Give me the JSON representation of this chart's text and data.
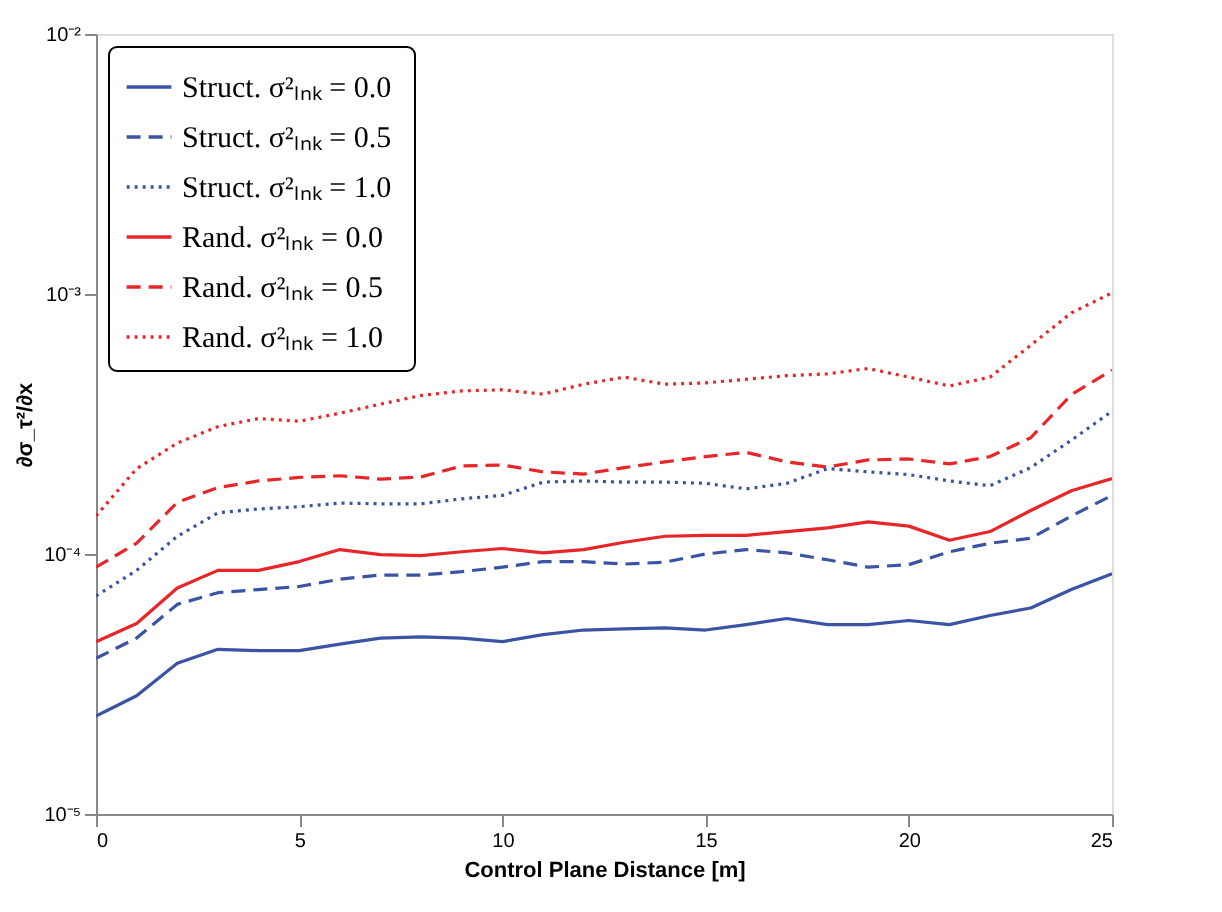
{
  "chart_data": {
    "type": "line",
    "xlabel": "Control Plane Distance [m]",
    "ylabel": "∂σ_τ²/∂x",
    "x": [
      0,
      1,
      2,
      3,
      4,
      5,
      6,
      7,
      8,
      9,
      10,
      11,
      12,
      13,
      14,
      15,
      16,
      17,
      18,
      19,
      20,
      21,
      22,
      23,
      24,
      25
    ],
    "xlim": [
      0,
      25
    ],
    "xticks": [
      0,
      5,
      10,
      15,
      20,
      25
    ],
    "ylim": [
      1e-05,
      0.01
    ],
    "yticks": [
      {
        "value": 1e-05,
        "label": "10⁻⁵"
      },
      {
        "value": 0.0001,
        "label": "10⁻⁴"
      },
      {
        "value": 0.001,
        "label": "10⁻³"
      },
      {
        "value": 0.01,
        "label": "10⁻²"
      }
    ],
    "log": "y",
    "grid": false,
    "legend": "top left",
    "marker": "none",
    "series": [
      {
        "name": "Struct. σ²ₗₙₖ = 0.0",
        "color": "#3b53a4",
        "line_style": "solid",
        "values": [
          2.38e-05,
          2.85e-05,
          3.8e-05,
          4.3e-05,
          4.25e-05,
          4.25e-05,
          4.5e-05,
          4.75e-05,
          4.8e-05,
          4.75e-05,
          4.6e-05,
          4.9e-05,
          5.1e-05,
          5.15e-05,
          5.2e-05,
          5.1e-05,
          5.35e-05,
          5.65e-05,
          5.35e-05,
          5.35e-05,
          5.55e-05,
          5.35e-05,
          5.8e-05,
          6.2e-05,
          7.3e-05,
          8.4e-05
        ]
      },
      {
        "name": "Struct. σ²ₗₙₖ = 0.5",
        "color": "#3b53a4",
        "line_style": "dashed",
        "values": [
          3.97e-05,
          4.75e-05,
          6.4e-05,
          7.1e-05,
          7.3e-05,
          7.5e-05,
          8e-05,
          8.3e-05,
          8.3e-05,
          8.55e-05,
          8.9e-05,
          9.35e-05,
          9.35e-05,
          9.15e-05,
          9.3e-05,
          0.0001,
          0.000104,
          0.000101,
          9.5e-05,
          8.9e-05,
          9.1e-05,
          0.000102,
          0.00011,
          0.000115,
          0.00014,
          0.000168
        ]
      },
      {
        "name": "Struct. σ²ₗₙₖ = 1.0",
        "color": "#3b53a4",
        "line_style": "dotted",
        "values": [
          6.9e-05,
          8.65e-05,
          0.000117,
          0.000144,
          0.000149,
          0.000152,
          0.000157,
          0.000156,
          0.000156,
          0.000163,
          0.000168,
          0.000189,
          0.000191,
          0.000189,
          0.000189,
          0.000187,
          0.000178,
          0.000187,
          0.000213,
          0.000207,
          0.000202,
          0.000191,
          0.000183,
          0.000215,
          0.000274,
          0.000354
        ]
      },
      {
        "name": "Rand.   σ²ₗₙₖ = 0.0",
        "color": "#e8262a",
        "line_style": "solid",
        "values": [
          4.6e-05,
          5.4e-05,
          7.4e-05,
          8.65e-05,
          8.65e-05,
          9.35e-05,
          0.000104,
          9.95e-05,
          9.85e-05,
          0.000102,
          0.000105,
          0.000101,
          0.000104,
          0.000111,
          0.000117,
          0.000118,
          0.000118,
          0.000122,
          0.000126,
          0.000133,
          0.000128,
          0.000113,
          0.000122,
          0.000147,
          0.000175,
          0.000195
        ]
      },
      {
        "name": "Rand.   σ²ₗₙₖ = 0.5",
        "color": "#e8262a",
        "line_style": "dashed",
        "values": [
          8.9e-05,
          0.00011,
          0.000158,
          0.00018,
          0.000191,
          0.000197,
          0.0002,
          0.000194,
          0.000198,
          0.000218,
          0.00022,
          0.000207,
          0.000203,
          0.000215,
          0.000226,
          0.000237,
          0.000246,
          0.000226,
          0.000216,
          0.00023,
          0.000232,
          0.000222,
          0.000237,
          0.00028,
          0.00041,
          0.00051
        ]
      },
      {
        "name": "Rand.   σ²ₗₙₖ = 1.0",
        "color": "#e8262a",
        "line_style": "dotted",
        "values": [
          0.00014,
          0.000213,
          0.000267,
          0.000309,
          0.000332,
          0.000324,
          0.000348,
          0.000377,
          0.000407,
          0.000424,
          0.000428,
          0.000412,
          0.00045,
          0.000479,
          0.00045,
          0.000455,
          0.00047,
          0.000485,
          0.000493,
          0.000517,
          0.000479,
          0.000443,
          0.000479,
          0.000635,
          0.000846,
          0.00101
        ]
      }
    ]
  }
}
